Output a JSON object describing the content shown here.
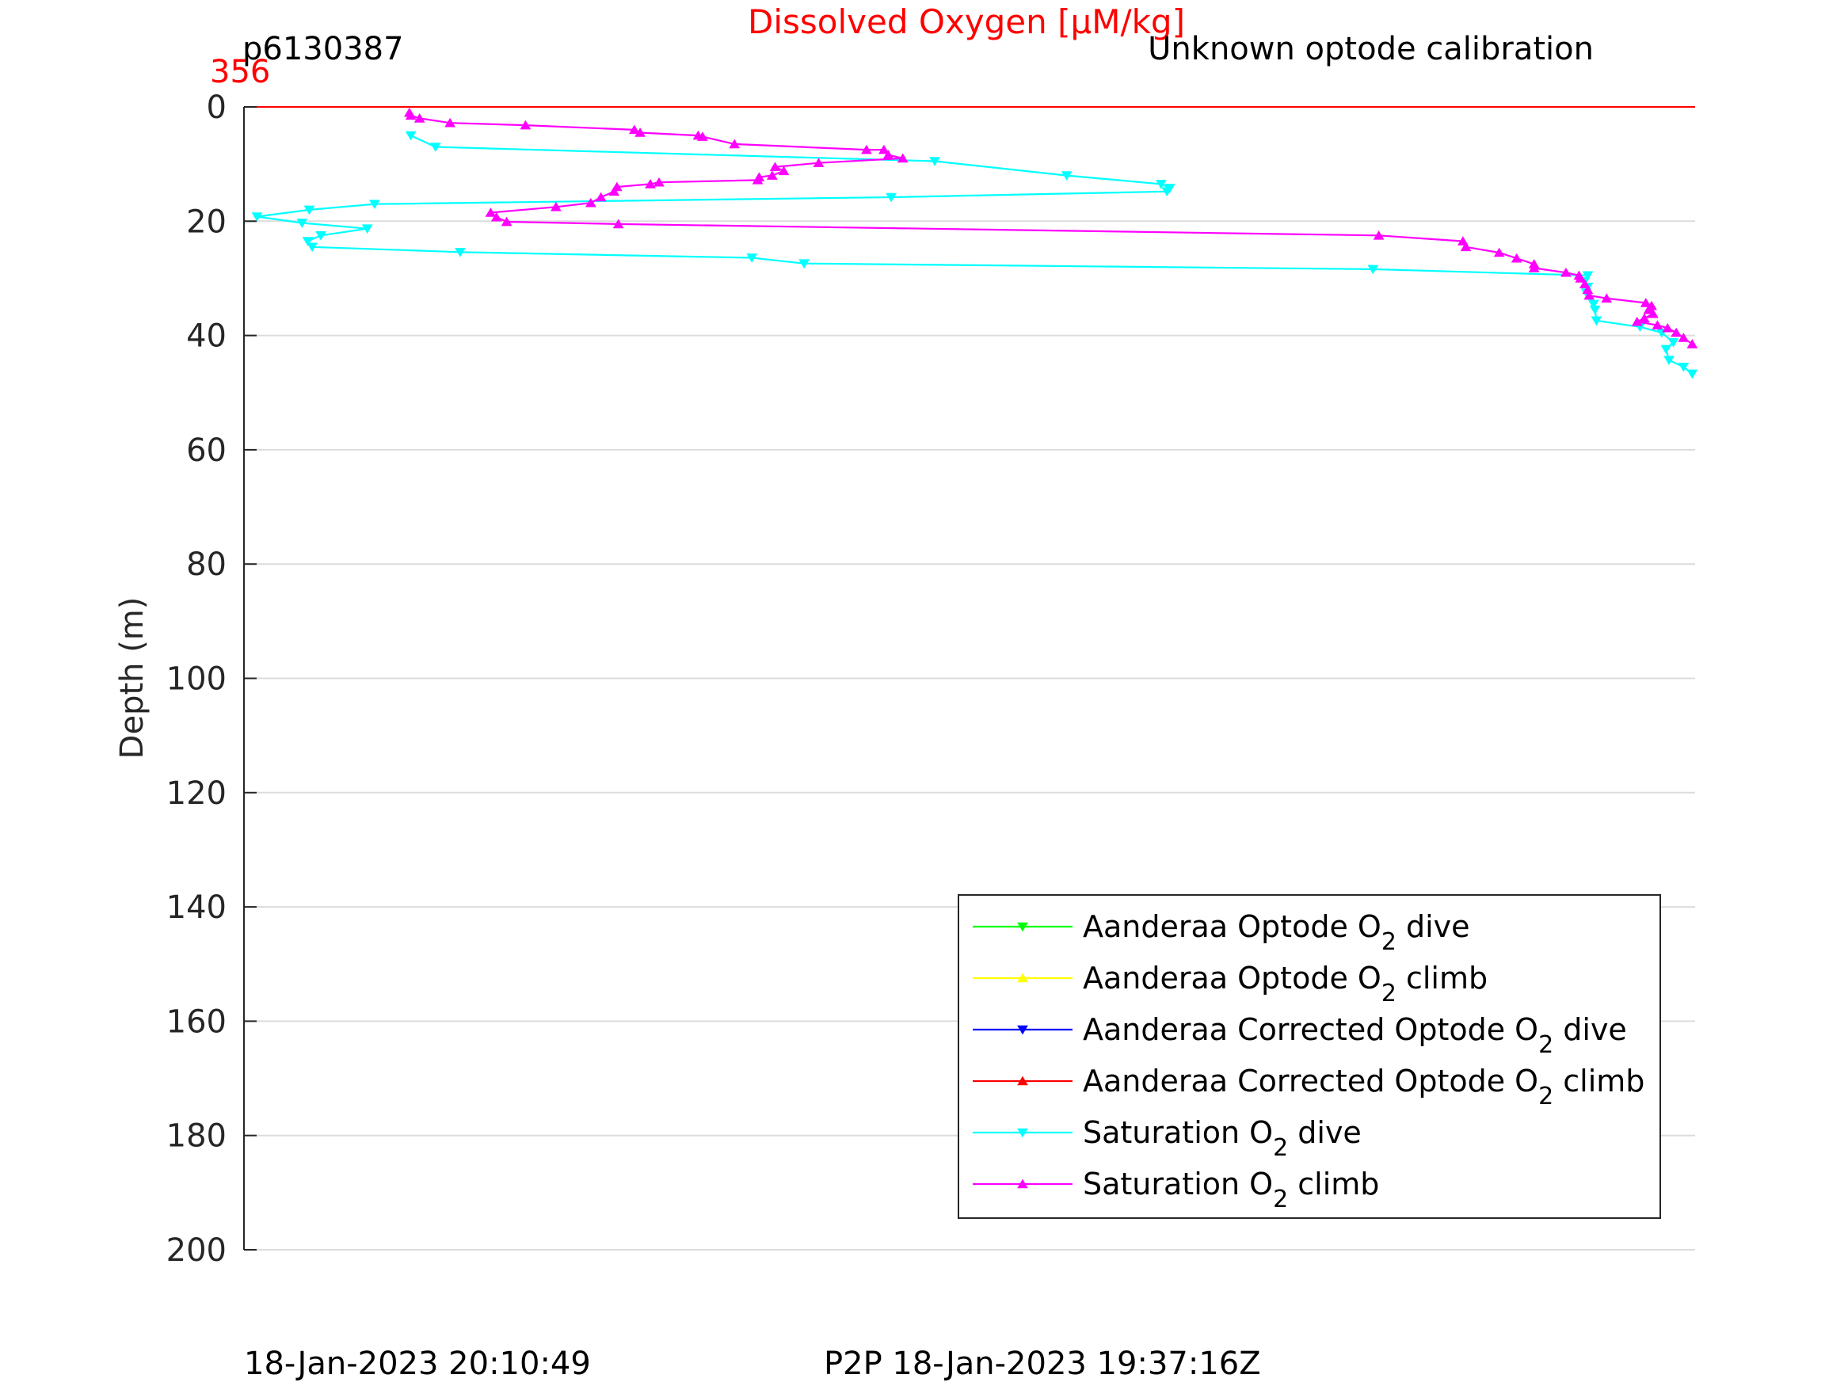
{
  "chart_data": {
    "type": "line",
    "title": "Dissolved Oxygen [μM/kg]",
    "title_color": "#ff0000",
    "top_left_label": "p6130387",
    "top_right_label": "Unknown optode calibration",
    "x_min_label": "356",
    "x_min_label_color": "#ff0000",
    "ylabel": "Depth (m)",
    "ylim": [
      0,
      200
    ],
    "y_reversed": true,
    "y_ticks": [
      0,
      20,
      40,
      60,
      80,
      100,
      120,
      140,
      160,
      180,
      200
    ],
    "x_range": [
      0,
      100
    ],
    "grid": true,
    "footer_left": "18-Jan-2023 20:10:49",
    "footer_center": "P2P 18-Jan-2023 19:37:16Z",
    "legend_position": "bottom-right",
    "reference_line": {
      "depth": 0,
      "color": "#ff0000"
    },
    "series": [
      {
        "name": "Aanderaa Optode O2 dive",
        "label_main": "Aanderaa Optode O",
        "label_sub": "2",
        "label_tail": " dive",
        "color": "#00ff00",
        "marker": "down",
        "x": [],
        "y": []
      },
      {
        "name": "Aanderaa Optode O2 climb",
        "label_main": "Aanderaa Optode O",
        "label_sub": "2",
        "label_tail": " climb",
        "color": "#ffff00",
        "marker": "up",
        "x": [],
        "y": []
      },
      {
        "name": "Aanderaa Corrected Optode O2 dive",
        "label_main": "Aanderaa Corrected Optode O",
        "label_sub": "2",
        "label_tail": " dive",
        "color": "#0000ff",
        "marker": "down",
        "x": [],
        "y": []
      },
      {
        "name": "Aanderaa Corrected Optode O2 climb",
        "label_main": "Aanderaa Corrected Optode O",
        "label_sub": "2",
        "label_tail": " climb",
        "color": "#ff0000",
        "marker": "up",
        "x": [],
        "y": []
      },
      {
        "name": "Saturation O2 dive",
        "label_main": "Saturation O",
        "label_sub": "2",
        "label_tail": " dive",
        "color": "#00ffff",
        "marker": "down",
        "x": [
          11.5,
          13.2,
          47.6,
          56.7,
          63.2,
          63.8,
          63.6,
          44.6,
          9.0,
          4.5,
          0.9,
          4.0,
          8.5,
          5.3,
          4.4,
          4.7,
          14.9,
          35.0,
          38.6,
          77.8,
          92.6,
          92.4,
          92.6,
          92.5,
          93.0,
          93.1,
          93.2,
          96.2,
          97.7,
          98.5,
          98.0,
          98.2,
          99.2,
          99.8
        ],
        "y": [
          5,
          7,
          9.5,
          12,
          13.5,
          14.2,
          14.8,
          15.8,
          17,
          18,
          19.2,
          20.3,
          21.3,
          22.5,
          23.5,
          24.5,
          25.4,
          26.4,
          27.4,
          28.4,
          29.5,
          30.5,
          31.5,
          32.5,
          34.5,
          35.5,
          37.4,
          38.5,
          39.5,
          41.2,
          42.4,
          44.3,
          45.5,
          46.7
        ]
      },
      {
        "name": "Saturation O2 climb",
        "label_main": "Saturation O",
        "label_sub": "2",
        "label_tail": " climb",
        "color": "#ff00ff",
        "marker": "up",
        "x": [
          11.4,
          11.5,
          12.1,
          14.2,
          19.4,
          26.9,
          27.3,
          31.3,
          31.6,
          33.8,
          42.9,
          44.1,
          44.4,
          45.4,
          39.6,
          36.6,
          37.2,
          36.4,
          35.5,
          35.4,
          28.6,
          28.0,
          25.7,
          25.5,
          24.6,
          23.9,
          21.5,
          17.0,
          17.4,
          18.1,
          25.8,
          78.2,
          84.0,
          84.2,
          86.5,
          87.7,
          88.9,
          88.9,
          91.1,
          92.0,
          92.1,
          92.4,
          92.6,
          92.7,
          93.9,
          96.6,
          97.0,
          96.8,
          97.1,
          96.5,
          96.0,
          97.4,
          98.1,
          98.7,
          99.2,
          99.8
        ],
        "y": [
          1,
          1.5,
          2,
          2.8,
          3.2,
          4,
          4.5,
          5,
          5.2,
          6.5,
          7.5,
          7.5,
          8.4,
          9,
          9.8,
          10.5,
          11.2,
          12,
          12.3,
          12.8,
          13.2,
          13.5,
          14,
          14.8,
          15.8,
          16.8,
          17.5,
          18.5,
          19.3,
          20.1,
          20.5,
          22.5,
          23.5,
          24.5,
          25.5,
          26.5,
          27.5,
          28.2,
          29,
          29.5,
          30,
          31,
          32,
          33,
          33.5,
          34.3,
          34.8,
          35.5,
          36.2,
          37,
          37.6,
          38.2,
          38.7,
          39.5,
          40.4,
          41.5
        ]
      }
    ]
  }
}
